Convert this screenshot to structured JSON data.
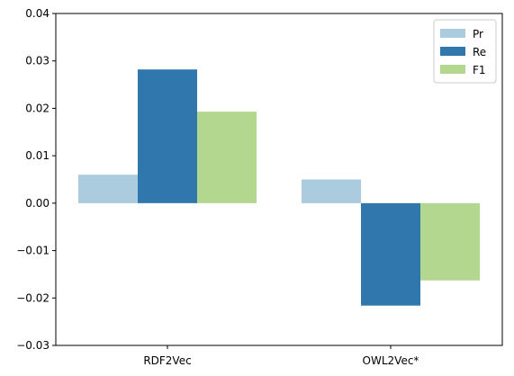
{
  "chart_data": {
    "type": "bar",
    "categories": [
      "RDF2Vec",
      "OWL2Vec*"
    ],
    "series": [
      {
        "name": "Pr",
        "color": "#abcbde",
        "values": [
          0.006,
          0.005
        ]
      },
      {
        "name": "Re",
        "color": "#2f77ac",
        "values": [
          0.0282,
          -0.0216
        ]
      },
      {
        "name": "F1",
        "color": "#b3d78f",
        "values": [
          0.0193,
          -0.0163
        ]
      }
    ],
    "ylim": [
      -0.03,
      0.04
    ],
    "yticks": [
      "0.04",
      "0.03",
      "0.02",
      "0.01",
      "0.00",
      "−0.01",
      "−0.02",
      "−0.03"
    ],
    "ytick_values": [
      0.04,
      0.03,
      0.02,
      0.01,
      0.0,
      -0.01,
      -0.02,
      -0.03
    ],
    "title": "",
    "xlabel": "",
    "ylabel": "",
    "legend_position": "top-right",
    "grid": false
  }
}
